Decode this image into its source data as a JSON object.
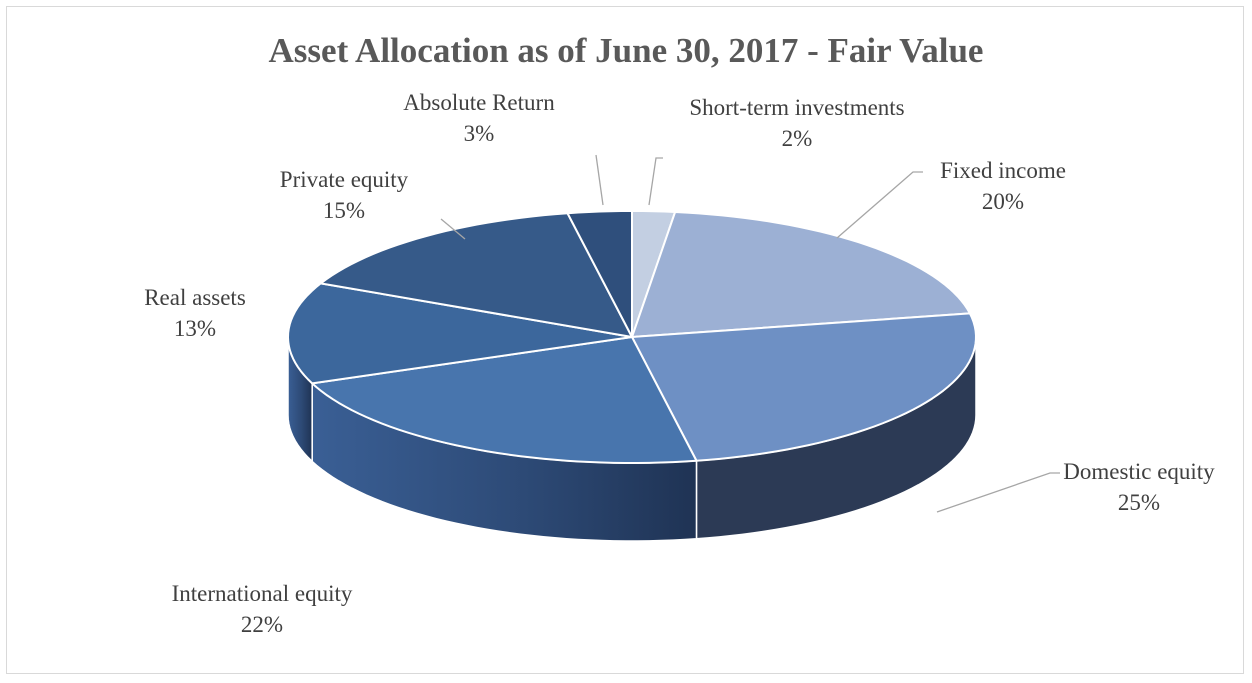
{
  "chart_data": {
    "type": "pie",
    "title": "Asset Allocation as of June 30, 2017 - Fair Value",
    "three_d": true,
    "start_angle_deg": 0,
    "direction": "clockwise",
    "slices": [
      {
        "label": "Short-term investments",
        "value": 2,
        "percent_label": "2%",
        "color": "#c3cfe2"
      },
      {
        "label": "Fixed income",
        "value": 20,
        "percent_label": "20%",
        "color": "#9cb0d4"
      },
      {
        "label": "Domestic equity",
        "value": 25,
        "percent_label": "25%",
        "color": "#6e90c4"
      },
      {
        "label": "International equity",
        "value": 22,
        "percent_label": "22%",
        "color": "#4875ad"
      },
      {
        "label": "Real assets",
        "value": 13,
        "percent_label": "13%",
        "color": "#3c679c"
      },
      {
        "label": "Private equity",
        "value": 15,
        "percent_label": "15%",
        "color": "#365a89"
      },
      {
        "label": "Absolute Return",
        "value": 3,
        "percent_label": "3%",
        "color": "#2f4f7c"
      }
    ]
  }
}
